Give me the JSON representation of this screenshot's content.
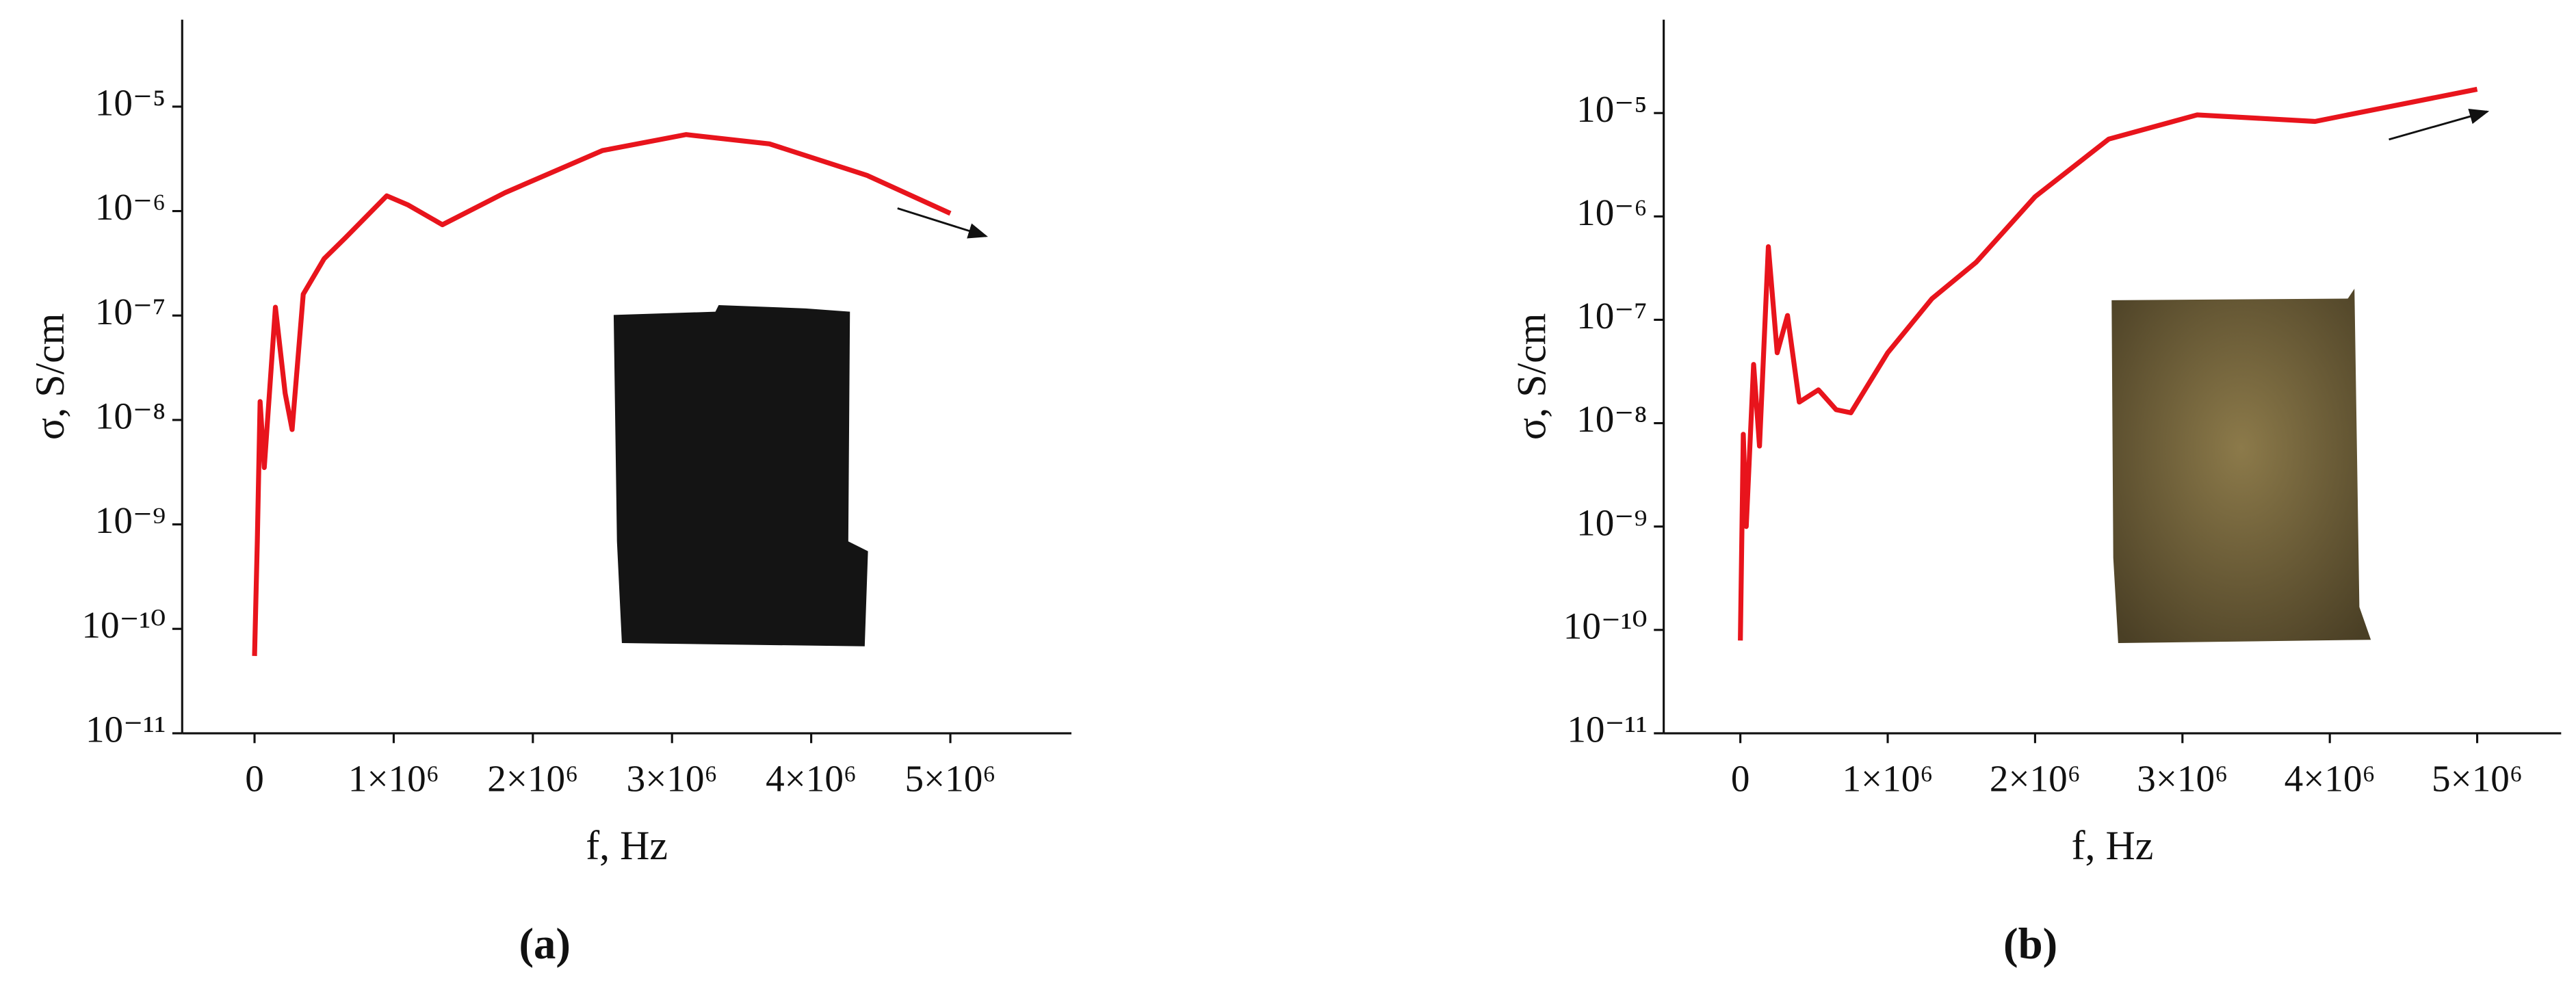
{
  "chart_data": [
    {
      "type": "line",
      "panel_label": "(a)",
      "xlabel": "f, Hz",
      "ylabel": "σ, S/cm",
      "log_y": true,
      "grid": false,
      "color": "#e8141c",
      "x": [
        0,
        20000,
        40000,
        70000,
        150000,
        220000,
        270000,
        350000,
        500000,
        650000,
        950000,
        1100000,
        1350000,
        1800000,
        2500000,
        3100000,
        3700000,
        4400000,
        5000000
      ],
      "values": [
        5.5e-11,
        6.9e-10,
        1.5e-08,
        3.5e-09,
        1.2e-07,
        1.8e-08,
        8.1e-09,
        1.6e-07,
        3.5e-07,
        5.5e-07,
        1.4e-06,
        1.15e-06,
        7.4e-07,
        1.5e-06,
        3.8e-06,
        5.4e-06,
        4.4e-06,
        2.2e-06,
        9.5e-07
      ],
      "xlim": [
        -520000,
        5870000
      ],
      "ylim": [
        1e-11,
        6.8e-05
      ],
      "xticks": [
        0,
        {
          "value": 1000000,
          "label": "1×10⁶"
        },
        {
          "value": 2000000,
          "label": "2×10⁶"
        },
        {
          "value": 3000000,
          "label": "3×10⁶"
        },
        {
          "value": 4000000,
          "label": "4×10⁶"
        },
        {
          "value": 5000000,
          "label": "5×10⁶"
        }
      ],
      "yticks": [
        {
          "value": 1e-11,
          "label": "10⁻¹¹"
        },
        {
          "value": 1e-10,
          "label": "10⁻¹⁰"
        },
        {
          "value": 1e-09,
          "label": "10⁻⁹"
        },
        {
          "value": 1e-08,
          "label": "10⁻⁸"
        },
        {
          "value": 1e-07,
          "label": "10⁻⁷"
        },
        {
          "value": 1e-06,
          "label": "10⁻⁶"
        },
        {
          "value": 1e-05,
          "label": "10⁻⁵"
        }
      ]
    },
    {
      "type": "line",
      "panel_label": "(b)",
      "xlabel": "f, Hz",
      "ylabel": "σ, S/cm",
      "log_y": true,
      "grid": false,
      "color": "#e8141c",
      "x": [
        0,
        20000,
        40000,
        90000,
        130000,
        190000,
        250000,
        320000,
        400000,
        530000,
        650000,
        750000,
        1000000,
        1300000,
        1600000,
        2000000,
        2500000,
        3100000,
        3900000,
        5000000
      ],
      "values": [
        7.9e-11,
        7.8e-09,
        1e-09,
        3.7e-08,
        6e-09,
        5.1e-07,
        4.8e-08,
        1.1e-07,
        1.6e-08,
        2.1e-08,
        1.35e-08,
        1.26e-08,
        4.8e-08,
        1.6e-07,
        3.6e-07,
        1.55e-06,
        5.6e-06,
        9.6e-06,
        8.3e-06,
        1.7e-05
      ],
      "xlim": [
        -520000,
        5570000
      ],
      "ylim": [
        1e-11,
        8e-05
      ],
      "xticks": [
        0,
        {
          "value": 1000000,
          "label": "1×10⁶"
        },
        {
          "value": 2000000,
          "label": "2×10⁶"
        },
        {
          "value": 3000000,
          "label": "3×10⁶"
        },
        {
          "value": 4000000,
          "label": "4×10⁶"
        },
        {
          "value": 5000000,
          "label": "5×10⁶"
        }
      ],
      "yticks": [
        {
          "value": 1e-11,
          "label": "10⁻¹¹"
        },
        {
          "value": 1e-10,
          "label": "10⁻¹⁰"
        },
        {
          "value": 1e-09,
          "label": "10⁻⁹"
        },
        {
          "value": 1e-08,
          "label": "10⁻⁸"
        },
        {
          "value": 1e-07,
          "label": "10⁻⁷"
        },
        {
          "value": 1e-06,
          "label": "10⁻⁶"
        },
        {
          "value": 1e-05,
          "label": "10⁻⁵"
        }
      ]
    }
  ]
}
